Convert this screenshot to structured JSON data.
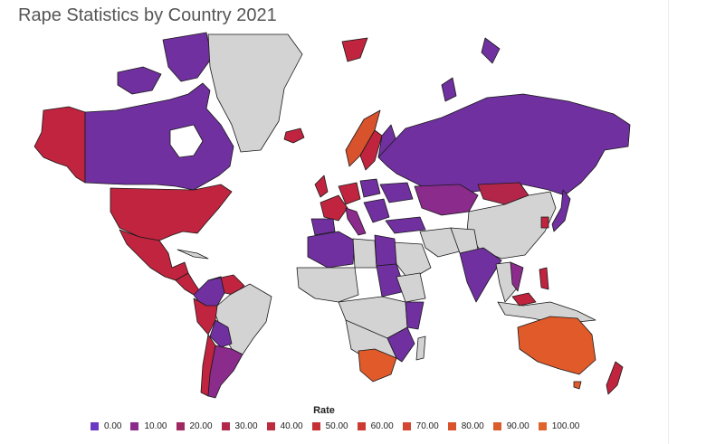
{
  "title": "Rape Statistics by Country 2021",
  "legend": {
    "title": "Rate",
    "items": [
      {
        "label": "0.00",
        "color": "#6a39c4"
      },
      {
        "label": "10.00",
        "color": "#8b2b8c"
      },
      {
        "label": "20.00",
        "color": "#a02860"
      },
      {
        "label": "30.00",
        "color": "#b3264a"
      },
      {
        "label": "40.00",
        "color": "#be2a3e"
      },
      {
        "label": "50.00",
        "color": "#c52f36"
      },
      {
        "label": "60.00",
        "color": "#cc3a32"
      },
      {
        "label": "70.00",
        "color": "#d3462f"
      },
      {
        "label": "80.00",
        "color": "#d8522c"
      },
      {
        "label": "90.00",
        "color": "#dc5b2c"
      },
      {
        "label": "100.00",
        "color": "#e0632c"
      }
    ]
  },
  "colors": {
    "no_data": "#d3d3d3",
    "low": "#7030a0",
    "mid": "#c0243e",
    "high": "#e05a2a"
  }
}
